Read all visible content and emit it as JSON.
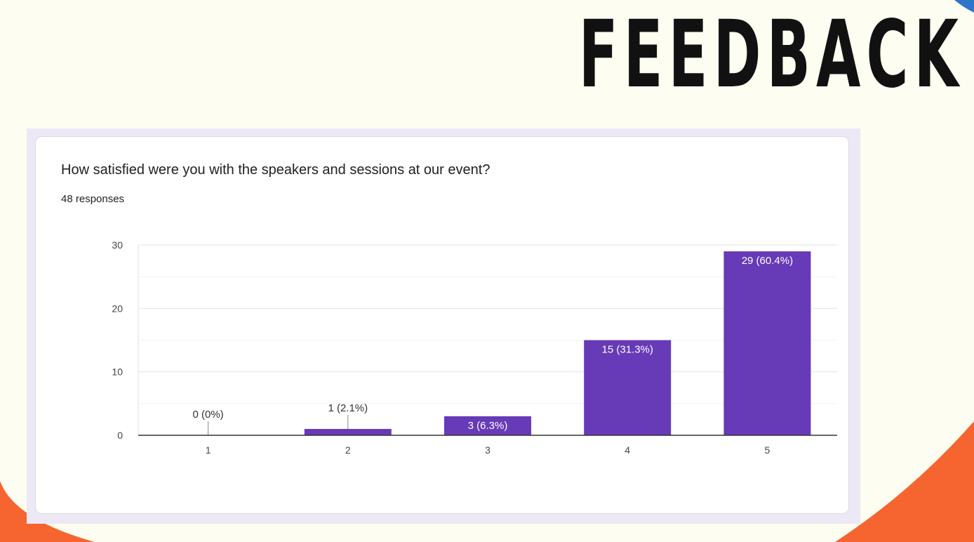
{
  "slide": {
    "title": "FEEDBACK"
  },
  "colors": {
    "background": "#fefdf1",
    "accent": "#f6652f",
    "corner": "#2f76c9",
    "bar": "#673ab7"
  },
  "card": {
    "question": "How satisfied were you with the speakers and sessions at our event?",
    "responses": "48 responses"
  },
  "chart_data": {
    "type": "bar",
    "title": "How satisfied were you with the speakers and sessions at our event?",
    "subtitle": "48 responses",
    "categories": [
      "1",
      "2",
      "3",
      "4",
      "5"
    ],
    "values": [
      0,
      1,
      3,
      15,
      29
    ],
    "data_labels": [
      "0 (0%)",
      "1 (2.1%)",
      "3 (6.3%)",
      "15 (31.3%)",
      "29 (60.4%)"
    ],
    "ylim": [
      0,
      30
    ],
    "yticks": [
      0,
      10,
      20,
      30
    ],
    "grid": true,
    "xlabel": "",
    "ylabel": ""
  }
}
